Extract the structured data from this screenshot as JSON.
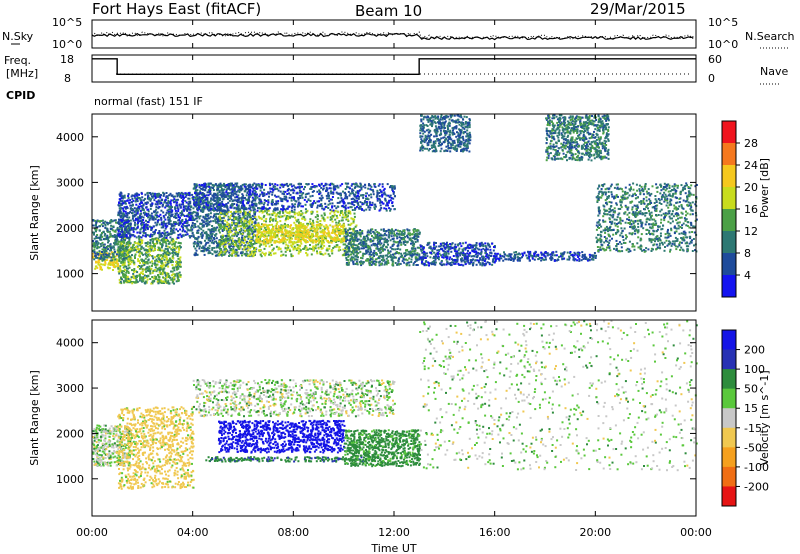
{
  "header": {
    "title": "Fort Hays East (fitACF)",
    "beam": "Beam 10",
    "date": "29/Mar/2015"
  },
  "noise_panel": {
    "left_label": "N.Sky",
    "right_label": "N.Search",
    "left_ticks": [
      "10^5",
      "10^0"
    ],
    "right_ticks": [
      "10^5",
      "10^0"
    ]
  },
  "freq_panel": {
    "left_label_1": "Freq.",
    "left_label_2": "[MHz]",
    "right_label": "Nave",
    "left_ticks": [
      "18",
      "8"
    ],
    "right_ticks": [
      "60",
      "0"
    ]
  },
  "cpid_panel": {
    "label": "CPID",
    "text": "normal (fast) 151 IF"
  },
  "power_panel": {
    "ylabel": "Slant Range [km]",
    "cbar_label": "Power [dB]",
    "cbar_ticks": [
      "28",
      "24",
      "20",
      "16",
      "12",
      "8",
      "4"
    ],
    "cbar_colors": [
      "#f0141e",
      "#f5781e",
      "#f5c81e",
      "#c8dc1e",
      "#4ba046",
      "#2d7873",
      "#1e4b9b",
      "#1414f0"
    ]
  },
  "velocity_panel": {
    "ylabel": "Slant Range [km]",
    "cbar_label": "Velocity [m s^-1]",
    "cbar_ticks": [
      "200",
      "100",
      "50",
      "15",
      "-15",
      "-50",
      "-100",
      "-200"
    ],
    "cbar_colors": [
      "#1414e6",
      "#2832b4",
      "#2d8c3c",
      "#5ac83c",
      "#c8c8c8",
      "#f0c850",
      "#f5a01e",
      "#f06e14",
      "#e61414"
    ]
  },
  "x_axis": {
    "label": "Time UT",
    "ticks": [
      "00:00",
      "04:00",
      "08:00",
      "12:00",
      "16:00",
      "20:00",
      "00:00"
    ]
  },
  "chart_data": {
    "type": "heatmap",
    "title": "Fort Hays East (fitACF)",
    "xlabel": "Time UT",
    "ylabel": "Slant Range [km]",
    "xlim": [
      0,
      24
    ],
    "ylim": [
      180,
      4500
    ],
    "yticks": [
      1000,
      2000,
      3000,
      4000
    ],
    "power_scale": [
      4,
      8,
      12,
      16,
      20,
      24,
      28
    ],
    "velocity_scale": [
      -200,
      -100,
      -50,
      -15,
      15,
      50,
      100,
      200
    ],
    "frequency_mhz": [
      {
        "from": 0.0,
        "to": 1.0,
        "value": 18
      },
      {
        "from": 1.0,
        "to": 13.0,
        "value": 10
      },
      {
        "from": 13.0,
        "to": 24.0,
        "value": 18
      }
    ],
    "power_regions": [
      {
        "x": [
          0.0,
          1.0
        ],
        "range_km": [
          1100,
          1500
        ],
        "power_db": 20
      },
      {
        "x": [
          0.0,
          1.5
        ],
        "range_km": [
          1300,
          2200
        ],
        "power_db": 10
      },
      {
        "x": [
          1.0,
          3.5
        ],
        "range_km": [
          800,
          1800
        ],
        "power_db": 14
      },
      {
        "x": [
          1.0,
          4.0
        ],
        "range_km": [
          1800,
          2800
        ],
        "power_db": 6
      },
      {
        "x": [
          4.0,
          6.5
        ],
        "range_km": [
          1400,
          3000
        ],
        "power_db": 8
      },
      {
        "x": [
          5.0,
          10.5
        ],
        "range_km": [
          1400,
          2400
        ],
        "power_db": 16
      },
      {
        "x": [
          6.5,
          10.0
        ],
        "range_km": [
          1700,
          2100
        ],
        "power_db": 20
      },
      {
        "x": [
          4.0,
          12.0
        ],
        "range_km": [
          2400,
          3000
        ],
        "power_db": 6
      },
      {
        "x": [
          10.0,
          13.0
        ],
        "range_km": [
          1200,
          2000
        ],
        "power_db": 10
      },
      {
        "x": [
          13.0,
          15.0
        ],
        "range_km": [
          3700,
          4500
        ],
        "power_db": 8
      },
      {
        "x": [
          13.0,
          16.0
        ],
        "range_km": [
          1200,
          1700
        ],
        "power_db": 6
      },
      {
        "x": [
          16.0,
          20.0
        ],
        "range_km": [
          1300,
          1500
        ],
        "power_db": 6
      },
      {
        "x": [
          18.0,
          20.5
        ],
        "range_km": [
          3500,
          4500
        ],
        "power_db": 10
      },
      {
        "x": [
          20.0,
          24.0
        ],
        "range_km": [
          1500,
          3000
        ],
        "power_db": 10
      }
    ],
    "velocity_regions": [
      {
        "x": [
          0.0,
          1.5
        ],
        "range_km": [
          1300,
          2200
        ],
        "velocity": 0
      },
      {
        "x": [
          1.0,
          4.0
        ],
        "range_km": [
          800,
          2600
        ],
        "velocity": -30
      },
      {
        "x": [
          5.0,
          10.0
        ],
        "range_km": [
          1600,
          2300
        ],
        "velocity": 200
      },
      {
        "x": [
          4.5,
          11.0
        ],
        "range_km": [
          1400,
          1500
        ],
        "velocity": 40
      },
      {
        "x": [
          4.0,
          12.0
        ],
        "range_km": [
          2400,
          3200
        ],
        "velocity": 0
      },
      {
        "x": [
          10.0,
          13.0
        ],
        "range_km": [
          1300,
          2100
        ],
        "velocity": 30
      },
      {
        "x": [
          13.0,
          24.0
        ],
        "range_km": [
          1200,
          4500
        ],
        "velocity": 0
      }
    ]
  }
}
